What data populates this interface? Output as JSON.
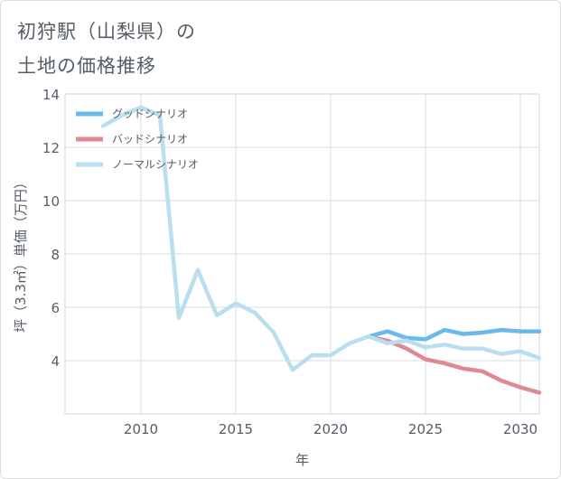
{
  "title_lines": [
    "初狩駅（山梨県）の",
    "土地の価格推移"
  ],
  "chart_data": {
    "type": "line",
    "xlabel": "年",
    "ylabel": "坪（3.3㎡）単価（万円）",
    "xlim": [
      2006,
      2031
    ],
    "ylim": [
      2,
      14
    ],
    "xticks": [
      2010,
      2015,
      2020,
      2025,
      2030
    ],
    "yticks": [
      4,
      6,
      8,
      10,
      12,
      14
    ],
    "grid": true,
    "legend_position": "top-left",
    "series": [
      {
        "name": "グッドシナリオ",
        "color": "#6cb8ea",
        "x": [
          2022,
          2023,
          2024,
          2025,
          2026,
          2027,
          2028,
          2029,
          2030,
          2031
        ],
        "y": [
          4.9,
          5.1,
          4.85,
          4.8,
          5.15,
          5.0,
          5.05,
          5.15,
          5.1,
          5.1
        ]
      },
      {
        "name": "バッドシナリオ",
        "color": "#de8a92",
        "x": [
          2022,
          2023,
          2024,
          2025,
          2026,
          2027,
          2028,
          2029,
          2030,
          2031
        ],
        "y": [
          4.9,
          4.75,
          4.45,
          4.05,
          3.9,
          3.7,
          3.6,
          3.25,
          3.0,
          2.8
        ]
      },
      {
        "name": "ノーマルシナリオ",
        "color": "#b9dfef",
        "x": [
          2008,
          2009,
          2010,
          2011,
          2012,
          2013,
          2014,
          2015,
          2016,
          2017,
          2018,
          2019,
          2020,
          2021,
          2022,
          2023,
          2024,
          2025,
          2026,
          2027,
          2028,
          2029,
          2030,
          2031
        ],
        "y": [
          12.8,
          13.2,
          13.5,
          13.2,
          5.6,
          7.4,
          5.7,
          6.15,
          5.8,
          5.05,
          3.65,
          4.2,
          4.2,
          4.65,
          4.9,
          4.65,
          4.75,
          4.5,
          4.6,
          4.45,
          4.45,
          4.25,
          4.35,
          4.1
        ]
      }
    ]
  }
}
